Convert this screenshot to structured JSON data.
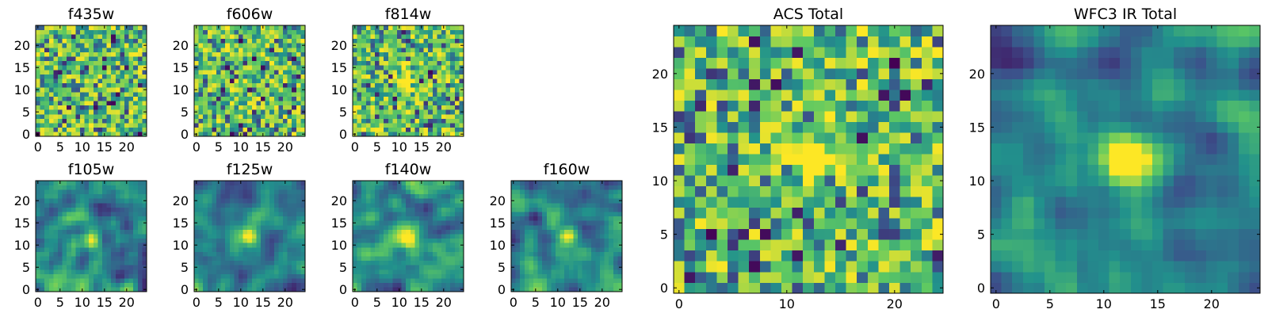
{
  "figure": {
    "type": "grid-of-image-panels"
  },
  "colormap": "viridis",
  "colormap_stops": [
    "#440154",
    "#3b528b",
    "#21918c",
    "#5ec962",
    "#fde725"
  ],
  "panels": [
    {
      "id": "f435w",
      "title": "f435w",
      "xticks": [
        "0",
        "5",
        "10",
        "15",
        "20"
      ],
      "yticks": [
        "0",
        "5",
        "10",
        "15",
        "20"
      ],
      "texture": "noise",
      "seed": 11,
      "blob": null
    },
    {
      "id": "f606w",
      "title": "f606w",
      "xticks": [
        "0",
        "5",
        "10",
        "15",
        "20"
      ],
      "yticks": [
        "0",
        "5",
        "10",
        "15",
        "20"
      ],
      "texture": "noise",
      "seed": 23,
      "blob": null
    },
    {
      "id": "f814w",
      "title": "f814w",
      "xticks": [
        "0",
        "5",
        "10",
        "15",
        "20"
      ],
      "yticks": [
        "0",
        "5",
        "10",
        "15",
        "20"
      ],
      "texture": "noise",
      "seed": 37,
      "blob": [
        12,
        12
      ]
    },
    {
      "id": "f105w",
      "title": "f105w",
      "xticks": [
        "0",
        "5",
        "10",
        "15",
        "20"
      ],
      "yticks": [
        "0",
        "5",
        "10",
        "15",
        "20"
      ],
      "texture": "smooth",
      "seed": 41,
      "blob": [
        12,
        11
      ]
    },
    {
      "id": "f125w",
      "title": "f125w",
      "xticks": [
        "0",
        "5",
        "10",
        "15",
        "20"
      ],
      "yticks": [
        "0",
        "5",
        "10",
        "15",
        "20"
      ],
      "texture": "smooth",
      "seed": 53,
      "blob": [
        12,
        12
      ]
    },
    {
      "id": "f140w",
      "title": "f140w",
      "xticks": [
        "0",
        "5",
        "10",
        "15",
        "20"
      ],
      "yticks": [
        "0",
        "5",
        "10",
        "15",
        "20"
      ],
      "texture": "smooth",
      "seed": 67,
      "blob": [
        12,
        11
      ]
    },
    {
      "id": "f160w",
      "title": "f160w",
      "xticks": [
        "0",
        "5",
        "10",
        "15",
        "20"
      ],
      "yticks": [
        "0",
        "5",
        "10",
        "15",
        "20"
      ],
      "texture": "smooth",
      "seed": 79,
      "blob": [
        12,
        12
      ]
    },
    {
      "id": "acs-total",
      "title": "ACS Total",
      "xticks": [
        "0",
        "10",
        "20"
      ],
      "yticks": [
        "0",
        "5",
        "10",
        "15",
        "20"
      ],
      "texture": "noise",
      "seed": 97,
      "blob": [
        12,
        12
      ]
    },
    {
      "id": "wfc3-ir-total",
      "title": "WFC3 IR Total",
      "xticks": [
        "0",
        "5",
        "10",
        "15",
        "20"
      ],
      "yticks": [
        "0",
        "5",
        "10",
        "15",
        "20"
      ],
      "texture": "smooth",
      "seed": 113,
      "blob": [
        12,
        12
      ]
    }
  ],
  "chart_data": [
    {
      "type": "heatmap",
      "title": "f435w",
      "x_range": [
        0,
        24
      ],
      "y_range": [
        0,
        24
      ],
      "grid": false,
      "colormap": "viridis"
    },
    {
      "type": "heatmap",
      "title": "f606w",
      "x_range": [
        0,
        24
      ],
      "y_range": [
        0,
        24
      ],
      "grid": false,
      "colormap": "viridis"
    },
    {
      "type": "heatmap",
      "title": "f814w",
      "x_range": [
        0,
        24
      ],
      "y_range": [
        0,
        24
      ],
      "grid": false,
      "colormap": "viridis"
    },
    {
      "type": "heatmap",
      "title": "f105w",
      "x_range": [
        0,
        24
      ],
      "y_range": [
        0,
        24
      ],
      "grid": false,
      "colormap": "viridis"
    },
    {
      "type": "heatmap",
      "title": "f125w",
      "x_range": [
        0,
        24
      ],
      "y_range": [
        0,
        24
      ],
      "grid": false,
      "colormap": "viridis"
    },
    {
      "type": "heatmap",
      "title": "f140w",
      "x_range": [
        0,
        24
      ],
      "y_range": [
        0,
        24
      ],
      "grid": false,
      "colormap": "viridis"
    },
    {
      "type": "heatmap",
      "title": "f160w",
      "x_range": [
        0,
        24
      ],
      "y_range": [
        0,
        24
      ],
      "grid": false,
      "colormap": "viridis"
    },
    {
      "type": "heatmap",
      "title": "ACS Total",
      "x_range": [
        0,
        24
      ],
      "y_range": [
        0,
        24
      ],
      "grid": false,
      "colormap": "viridis"
    },
    {
      "type": "heatmap",
      "title": "WFC3 IR Total",
      "x_range": [
        0,
        24
      ],
      "y_range": [
        0,
        24
      ],
      "grid": false,
      "colormap": "viridis"
    }
  ]
}
